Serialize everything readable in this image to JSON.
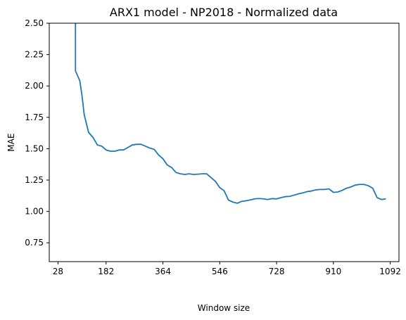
{
  "chart_data": {
    "type": "line",
    "title": "ARX1 model - NP2018 - Normalized data",
    "xlabel": "Window size",
    "ylabel": "MAE",
    "xlim": [
      0,
      1120
    ],
    "ylim": [
      0.6,
      2.5
    ],
    "xticks": [
      28,
      182,
      364,
      546,
      728,
      910,
      1092
    ],
    "yticks": [
      0.75,
      1.0,
      1.25,
      1.5,
      1.75,
      2.0,
      2.25,
      2.5
    ],
    "ytick_labels": [
      "0.75",
      "1.00",
      "1.25",
      "1.50",
      "1.75",
      "2.00",
      "2.25",
      "2.50"
    ],
    "grid": false,
    "color": "#1f77b4",
    "series": [
      {
        "x": [
          84,
          84,
          98,
          105,
          112,
          126,
          140,
          154,
          168,
          182,
          196,
          210,
          224,
          238,
          252,
          266,
          280,
          294,
          308,
          322,
          336,
          350,
          364,
          378,
          392,
          406,
          420,
          434,
          448,
          462,
          476,
          490,
          504,
          518,
          532,
          546,
          560,
          574,
          588,
          602,
          616,
          630,
          644,
          658,
          672,
          686,
          700,
          714,
          728,
          742,
          756,
          770,
          784,
          798,
          812,
          826,
          840,
          854,
          868,
          882,
          896,
          910,
          924,
          938,
          952,
          966,
          980,
          994,
          1008,
          1022,
          1036,
          1050,
          1064,
          1078
        ],
        "y": [
          2.5,
          2.12,
          2.04,
          1.92,
          1.77,
          1.63,
          1.59,
          1.53,
          1.52,
          1.49,
          1.48,
          1.48,
          1.49,
          1.49,
          1.51,
          1.53,
          1.535,
          1.535,
          1.52,
          1.505,
          1.495,
          1.45,
          1.42,
          1.37,
          1.35,
          1.31,
          1.3,
          1.295,
          1.3,
          1.295,
          1.297,
          1.3,
          1.3,
          1.27,
          1.24,
          1.19,
          1.165,
          1.09,
          1.075,
          1.065,
          1.08,
          1.085,
          1.092,
          1.1,
          1.103,
          1.1,
          1.095,
          1.102,
          1.1,
          1.11,
          1.118,
          1.12,
          1.13,
          1.14,
          1.148,
          1.158,
          1.163,
          1.172,
          1.175,
          1.175,
          1.18,
          1.152,
          1.155,
          1.168,
          1.185,
          1.195,
          1.21,
          1.215,
          1.215,
          1.205,
          1.185,
          1.11,
          1.095,
          1.1
        ]
      }
    ]
  }
}
